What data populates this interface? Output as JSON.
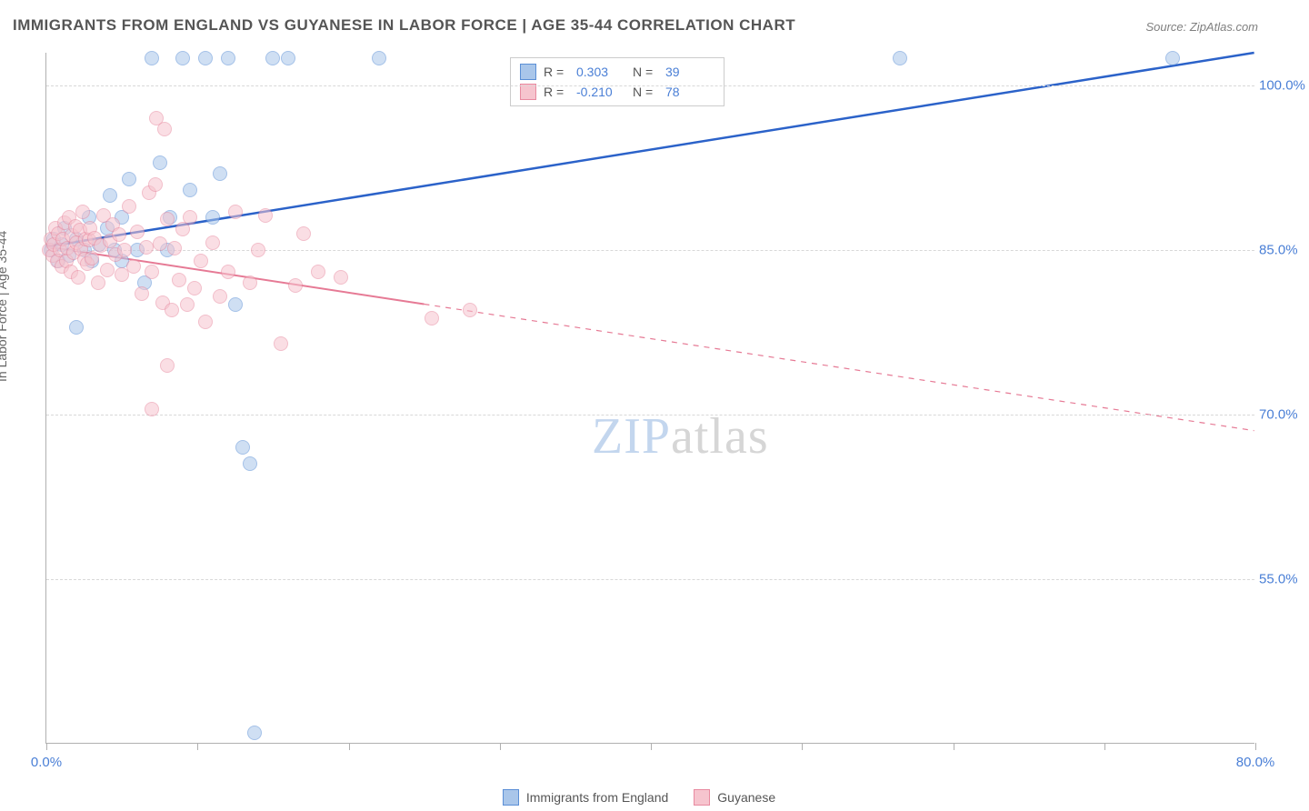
{
  "title": "IMMIGRANTS FROM ENGLAND VS GUYANESE IN LABOR FORCE | AGE 35-44 CORRELATION CHART",
  "source_label": "Source: ZipAtlas.com",
  "y_axis_label": "In Labor Force | Age 35-44",
  "watermark": {
    "part1": "ZIP",
    "part2": "atlas"
  },
  "chart": {
    "type": "scatter",
    "background_color": "#ffffff",
    "grid_color": "#d8d8d8",
    "axis_color": "#b0b0b0",
    "tick_label_color": "#4a7fd6",
    "xlim": [
      0,
      80
    ],
    "ylim": [
      40,
      103
    ],
    "x_ticks": [
      0,
      10,
      20,
      30,
      40,
      50,
      60,
      70,
      80
    ],
    "x_tick_labels": {
      "0": "0.0%",
      "80": "80.0%"
    },
    "y_ticks": [
      55,
      70,
      85,
      100
    ],
    "y_tick_labels": {
      "55": "55.0%",
      "70": "70.0%",
      "85": "85.0%",
      "100": "100.0%"
    },
    "point_radius": 8,
    "point_stroke_width": 1.5,
    "series": [
      {
        "name": "Immigrants from England",
        "fill_color": "#a9c6ea",
        "stroke_color": "#5b8fd6",
        "fill_opacity": 0.55,
        "correlation": {
          "R": "0.303",
          "N": "39"
        },
        "regression": {
          "x1": 0,
          "y1": 85.3,
          "x2": 80,
          "y2": 103,
          "solid_until_x": 80,
          "line_color": "#2b62c9",
          "line_width": 2.5
        },
        "points": [
          [
            0.3,
            85
          ],
          [
            0.5,
            86
          ],
          [
            0.8,
            84
          ],
          [
            1.0,
            85.5
          ],
          [
            1.2,
            87
          ],
          [
            1.5,
            84.5
          ],
          [
            2.0,
            86
          ],
          [
            2.0,
            78
          ],
          [
            2.5,
            85
          ],
          [
            2.8,
            88
          ],
          [
            3.0,
            84
          ],
          [
            3.5,
            85.5
          ],
          [
            4.0,
            87
          ],
          [
            4.2,
            90
          ],
          [
            4.5,
            85
          ],
          [
            5.0,
            88
          ],
          [
            5.0,
            84
          ],
          [
            5.5,
            91.5
          ],
          [
            6.0,
            85
          ],
          [
            6.5,
            82
          ],
          [
            7.0,
            102.5
          ],
          [
            7.5,
            93
          ],
          [
            8.0,
            85
          ],
          [
            8.2,
            88
          ],
          [
            9.0,
            102.5
          ],
          [
            9.5,
            90.5
          ],
          [
            10.5,
            102.5
          ],
          [
            11.0,
            88
          ],
          [
            11.5,
            92
          ],
          [
            12.0,
            102.5
          ],
          [
            12.5,
            80
          ],
          [
            13.0,
            67
          ],
          [
            13.5,
            65.5
          ],
          [
            13.8,
            41
          ],
          [
            15.0,
            102.5
          ],
          [
            16.0,
            102.5
          ],
          [
            22.0,
            102.5
          ],
          [
            56.5,
            102.5
          ],
          [
            74.5,
            102.5
          ]
        ]
      },
      {
        "name": "Guyanese",
        "fill_color": "#f6c4ce",
        "stroke_color": "#e88aa0",
        "fill_opacity": 0.55,
        "correlation": {
          "R": "-0.210",
          "N": "78"
        },
        "regression": {
          "x1": 0,
          "y1": 85.3,
          "x2": 80,
          "y2": 68.5,
          "solid_until_x": 25,
          "line_color": "#e67a95",
          "line_width": 2,
          "dash": "6,6"
        },
        "points": [
          [
            0.2,
            85
          ],
          [
            0.3,
            86
          ],
          [
            0.4,
            84.5
          ],
          [
            0.5,
            85.5
          ],
          [
            0.6,
            87
          ],
          [
            0.7,
            84
          ],
          [
            0.8,
            86.5
          ],
          [
            0.9,
            85
          ],
          [
            1.0,
            83.5
          ],
          [
            1.1,
            86
          ],
          [
            1.2,
            87.5
          ],
          [
            1.3,
            84
          ],
          [
            1.4,
            85.2
          ],
          [
            1.5,
            88
          ],
          [
            1.6,
            83
          ],
          [
            1.7,
            86.3
          ],
          [
            1.8,
            84.8
          ],
          [
            1.9,
            87.2
          ],
          [
            2.0,
            85.7
          ],
          [
            2.1,
            82.5
          ],
          [
            2.2,
            86.8
          ],
          [
            2.3,
            85.1
          ],
          [
            2.4,
            88.5
          ],
          [
            2.5,
            84.2
          ],
          [
            2.6,
            86.0
          ],
          [
            2.7,
            83.8
          ],
          [
            2.8,
            85.9
          ],
          [
            2.9,
            87.0
          ],
          [
            3.0,
            84.3
          ],
          [
            3.2,
            86.1
          ],
          [
            3.4,
            82.0
          ],
          [
            3.6,
            85.4
          ],
          [
            3.8,
            88.2
          ],
          [
            4.0,
            83.2
          ],
          [
            4.2,
            85.8
          ],
          [
            4.4,
            87.3
          ],
          [
            4.6,
            84.6
          ],
          [
            4.8,
            86.4
          ],
          [
            5.0,
            82.8
          ],
          [
            5.2,
            85.0
          ],
          [
            5.5,
            89.0
          ],
          [
            5.8,
            83.5
          ],
          [
            6.0,
            86.7
          ],
          [
            6.3,
            81.0
          ],
          [
            6.6,
            85.3
          ],
          [
            6.8,
            90.2
          ],
          [
            7.0,
            83.0
          ],
          [
            7.0,
            70.5
          ],
          [
            7.2,
            91.0
          ],
          [
            7.3,
            97.0
          ],
          [
            7.5,
            85.6
          ],
          [
            7.7,
            80.2
          ],
          [
            7.8,
            96.0
          ],
          [
            8.0,
            87.8
          ],
          [
            8.0,
            74.5
          ],
          [
            8.3,
            79.5
          ],
          [
            8.5,
            85.2
          ],
          [
            8.8,
            82.3
          ],
          [
            9.0,
            86.9
          ],
          [
            9.3,
            80.0
          ],
          [
            9.5,
            88.0
          ],
          [
            9.8,
            81.5
          ],
          [
            10.2,
            84.0
          ],
          [
            10.5,
            78.5
          ],
          [
            11.0,
            85.7
          ],
          [
            11.5,
            80.8
          ],
          [
            12.0,
            83.0
          ],
          [
            12.5,
            88.5
          ],
          [
            13.5,
            82.0
          ],
          [
            14.0,
            85.0
          ],
          [
            14.5,
            88.2
          ],
          [
            15.5,
            76.5
          ],
          [
            16.5,
            81.8
          ],
          [
            17.0,
            86.5
          ],
          [
            18.0,
            83.0
          ],
          [
            19.5,
            82.5
          ],
          [
            25.5,
            78.8
          ],
          [
            28.0,
            79.5
          ]
        ]
      }
    ]
  },
  "legend_top": {
    "rows": [
      {
        "swatch_fill": "#a9c6ea",
        "swatch_stroke": "#5b8fd6",
        "r_label": "R =",
        "r_value": "0.303",
        "n_label": "N =",
        "n_value": "39"
      },
      {
        "swatch_fill": "#f6c4ce",
        "swatch_stroke": "#e88aa0",
        "r_label": "R =",
        "r_value": "-0.210",
        "n_label": "N =",
        "n_value": "78"
      }
    ]
  },
  "legend_bottom": {
    "items": [
      {
        "swatch_fill": "#a9c6ea",
        "swatch_stroke": "#5b8fd6",
        "label": "Immigrants from England"
      },
      {
        "swatch_fill": "#f6c4ce",
        "swatch_stroke": "#e88aa0",
        "label": "Guyanese"
      }
    ]
  }
}
